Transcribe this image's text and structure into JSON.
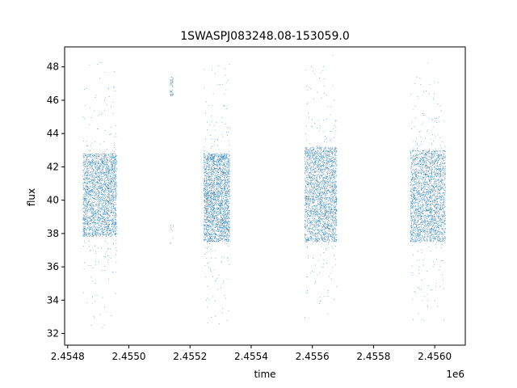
{
  "chart_data": {
    "type": "scatter",
    "title": "1SWASPJ083248.08-153059.0",
    "xlabel": "time",
    "ylabel": "flux",
    "x_offset_label": "1e6",
    "xlim": [
      2454790,
      2456100
    ],
    "ylim": [
      31.3,
      49.2
    ],
    "xticks": [
      2454800,
      2455000,
      2455200,
      2455400,
      2455600,
      2455800,
      2456000
    ],
    "xtick_labels": [
      "2.4548",
      "2.4550",
      "2.4552",
      "2.4554",
      "2.4556",
      "2.4558",
      "2.4560"
    ],
    "yticks": [
      32,
      34,
      36,
      38,
      40,
      42,
      44,
      46,
      48
    ],
    "ytick_labels": [
      "32",
      "34",
      "36",
      "38",
      "40",
      "42",
      "44",
      "46",
      "48"
    ],
    "grid": false,
    "legend": "none",
    "series": [
      {
        "color": "#1f77b4",
        "marker_size_note": "tiny",
        "clusters": [
          {
            "x_range": [
              2454850,
              2454960
            ],
            "y_core": [
              37.8,
              42.8
            ],
            "y_outliers": [
              32.2,
              48.3
            ],
            "density": "high"
          },
          {
            "x_range": [
              2455135,
              2455145
            ],
            "y_core": [
              46.2,
              47.4
            ],
            "y_outliers": [
              37.4,
              38.5
            ],
            "density": "low"
          },
          {
            "x_range": [
              2455245,
              2455330
            ],
            "y_core": [
              37.5,
              42.8
            ],
            "y_outliers": [
              32.5,
              48.2
            ],
            "density": "high"
          },
          {
            "x_range": [
              2455575,
              2455680
            ],
            "y_core": [
              37.5,
              43.2
            ],
            "y_outliers": [
              33.5,
              48.1
            ],
            "density": "high"
          },
          {
            "x_range": [
              2455920,
              2456035
            ],
            "y_core": [
              37.5,
              43.0
            ],
            "y_outliers": [
              32.1,
              47.7
            ],
            "density": "high"
          }
        ]
      }
    ]
  }
}
